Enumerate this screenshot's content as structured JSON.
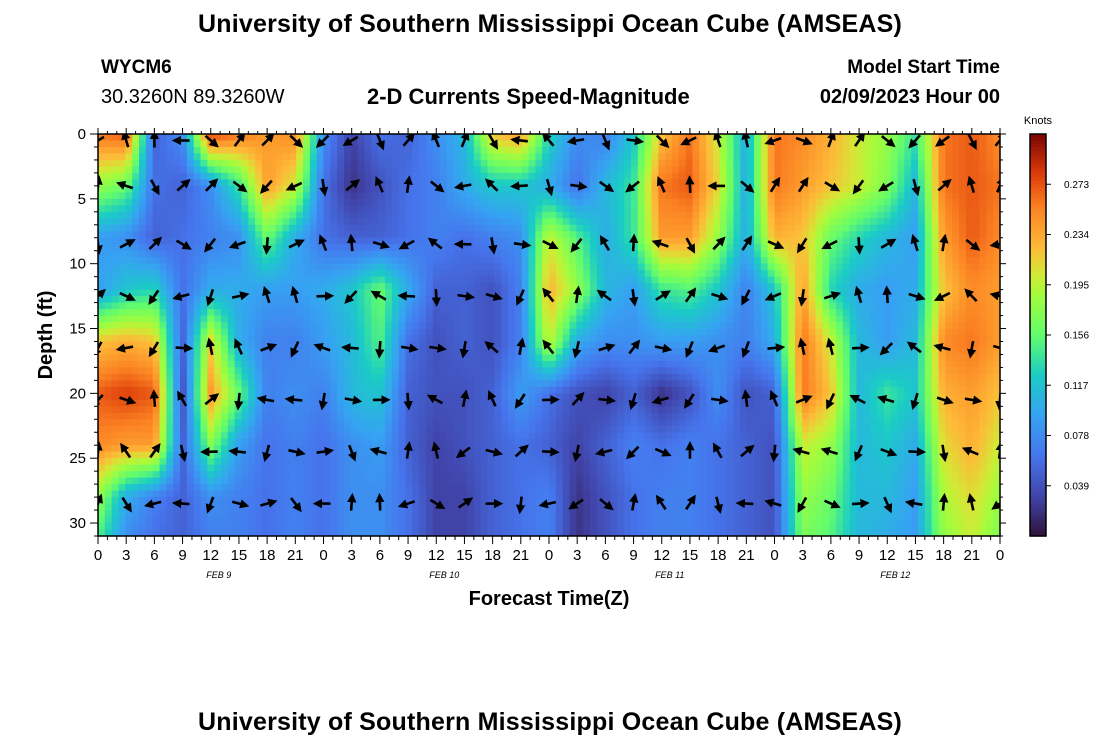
{
  "header": {
    "title": "University of Southern Mississippi Ocean Cube (AMSEAS)",
    "station": "WYCM6",
    "coords": "30.3260N  89.3260W",
    "subtitle": "2-D Currents Speed-Magnitude",
    "model_start_label": "Model Start Time",
    "model_start_value": "02/09/2023 Hour 00"
  },
  "footer": {
    "title": "University of Southern Mississippi Ocean Cube (AMSEAS)"
  },
  "chart_data": {
    "type": "heatmap",
    "title": "2-D Currents Speed-Magnitude",
    "xlabel": "Forecast Time(Z)",
    "ylabel": "Depth (ft)",
    "x_ticks": [
      "0",
      "3",
      "6",
      "9",
      "12",
      "15",
      "18",
      "21",
      "0",
      "3",
      "6",
      "9",
      "12",
      "15",
      "18",
      "21",
      "0",
      "3",
      "6",
      "9",
      "12",
      "15",
      "18",
      "21",
      "0",
      "3",
      "6",
      "9",
      "12",
      "15",
      "18",
      "21",
      "0"
    ],
    "x_range_hours": [
      0,
      96
    ],
    "day_labels": [
      {
        "label": "FEB 9",
        "hour": 12
      },
      {
        "label": "FEB 10",
        "hour": 36
      },
      {
        "label": "FEB 11",
        "hour": 60
      },
      {
        "label": "FEB 12",
        "hour": 84
      }
    ],
    "y_ticks": [
      0,
      5,
      10,
      15,
      20,
      25,
      30
    ],
    "ylim": [
      0,
      31
    ],
    "colorbar": {
      "label": "Knots",
      "ticks": [
        0.273,
        0.234,
        0.195,
        0.156,
        0.117,
        0.078,
        0.039
      ],
      "range": [
        0.0,
        0.312
      ]
    },
    "depths_ft": [
      0,
      4,
      8,
      12,
      16,
      20,
      24,
      28,
      31
    ],
    "hours": [
      0,
      3,
      6,
      9,
      12,
      15,
      18,
      21,
      24,
      27,
      30,
      33,
      36,
      39,
      42,
      45,
      48,
      51,
      54,
      57,
      60,
      63,
      66,
      69,
      72,
      75,
      78,
      81,
      84,
      87,
      90,
      93,
      96
    ],
    "speed_knots": [
      [
        0.26,
        0.27,
        0.05,
        0.08,
        0.28,
        0.26,
        0.24,
        0.25,
        0.08,
        0.03,
        0.06,
        0.05,
        0.08,
        0.11,
        0.22,
        0.24,
        0.13,
        0.08,
        0.07,
        0.12,
        0.22,
        0.26,
        0.2,
        0.1,
        0.26,
        0.25,
        0.23,
        0.2,
        0.18,
        0.14,
        0.26,
        0.27,
        0.25
      ],
      [
        0.18,
        0.16,
        0.06,
        0.05,
        0.08,
        0.14,
        0.24,
        0.2,
        0.06,
        0.02,
        0.04,
        0.06,
        0.07,
        0.1,
        0.12,
        0.12,
        0.1,
        0.06,
        0.11,
        0.14,
        0.26,
        0.27,
        0.21,
        0.1,
        0.26,
        0.24,
        0.22,
        0.2,
        0.17,
        0.11,
        0.26,
        0.27,
        0.26
      ],
      [
        0.09,
        0.08,
        0.05,
        0.06,
        0.07,
        0.08,
        0.16,
        0.1,
        0.06,
        0.05,
        0.05,
        0.06,
        0.07,
        0.06,
        0.07,
        0.08,
        0.2,
        0.15,
        0.1,
        0.14,
        0.24,
        0.24,
        0.18,
        0.1,
        0.23,
        0.22,
        0.16,
        0.13,
        0.11,
        0.09,
        0.24,
        0.27,
        0.25
      ],
      [
        0.09,
        0.12,
        0.13,
        0.06,
        0.1,
        0.1,
        0.09,
        0.09,
        0.1,
        0.12,
        0.16,
        0.1,
        0.05,
        0.05,
        0.04,
        0.07,
        0.23,
        0.18,
        0.11,
        0.09,
        0.14,
        0.15,
        0.12,
        0.07,
        0.12,
        0.24,
        0.13,
        0.1,
        0.09,
        0.1,
        0.22,
        0.25,
        0.24
      ],
      [
        0.22,
        0.23,
        0.22,
        0.05,
        0.21,
        0.1,
        0.07,
        0.07,
        0.09,
        0.11,
        0.15,
        0.06,
        0.04,
        0.05,
        0.04,
        0.07,
        0.2,
        0.1,
        0.08,
        0.08,
        0.09,
        0.09,
        0.08,
        0.07,
        0.1,
        0.26,
        0.2,
        0.11,
        0.09,
        0.11,
        0.25,
        0.26,
        0.24
      ],
      [
        0.27,
        0.28,
        0.27,
        0.04,
        0.24,
        0.16,
        0.07,
        0.08,
        0.07,
        0.11,
        0.12,
        0.05,
        0.04,
        0.04,
        0.05,
        0.09,
        0.06,
        0.04,
        0.03,
        0.05,
        0.02,
        0.04,
        0.08,
        0.04,
        0.05,
        0.26,
        0.22,
        0.11,
        0.14,
        0.12,
        0.23,
        0.24,
        0.22
      ],
      [
        0.25,
        0.24,
        0.24,
        0.05,
        0.17,
        0.09,
        0.06,
        0.07,
        0.06,
        0.08,
        0.09,
        0.05,
        0.03,
        0.04,
        0.05,
        0.06,
        0.05,
        0.03,
        0.05,
        0.07,
        0.06,
        0.07,
        0.06,
        0.05,
        0.04,
        0.2,
        0.18,
        0.11,
        0.12,
        0.1,
        0.21,
        0.23,
        0.2
      ],
      [
        0.18,
        0.1,
        0.07,
        0.05,
        0.08,
        0.07,
        0.06,
        0.07,
        0.06,
        0.08,
        0.08,
        0.06,
        0.03,
        0.03,
        0.05,
        0.06,
        0.07,
        0.02,
        0.04,
        0.06,
        0.07,
        0.07,
        0.06,
        0.05,
        0.04,
        0.18,
        0.16,
        0.11,
        0.11,
        0.09,
        0.19,
        0.21,
        0.18
      ],
      [
        0.15,
        0.08,
        0.06,
        0.05,
        0.07,
        0.07,
        0.06,
        0.07,
        0.06,
        0.08,
        0.08,
        0.06,
        0.03,
        0.03,
        0.05,
        0.06,
        0.07,
        0.02,
        0.04,
        0.06,
        0.07,
        0.07,
        0.06,
        0.05,
        0.04,
        0.17,
        0.15,
        0.11,
        0.1,
        0.09,
        0.18,
        0.2,
        0.17
      ]
    ],
    "vector_depths_ft": [
      0.5,
      4,
      8.5,
      12.5,
      16.5,
      20.5,
      24.5,
      28.5
    ],
    "vector_hours": [
      0,
      3,
      6,
      9,
      12,
      15,
      18,
      21,
      24,
      27,
      30,
      33,
      36,
      39,
      42,
      45,
      48,
      51,
      54,
      57,
      60,
      63,
      66,
      69,
      72,
      75,
      78,
      81,
      84,
      87,
      90,
      93,
      96
    ]
  }
}
